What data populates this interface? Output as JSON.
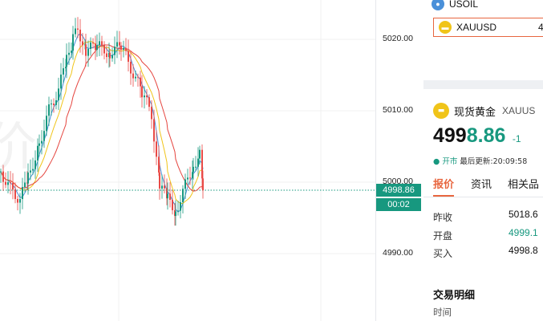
{
  "colors": {
    "accent": "#e8663f",
    "up": "#17987f",
    "down": "#e94a46",
    "ma_short": "#4a90d9",
    "ma_mid": "#f0c419",
    "ma_long": "#e5453f"
  },
  "chart": {
    "y_ticks": [
      "5020.00",
      "5010.00",
      "5000.00",
      "4990.00"
    ],
    "current_price": "4998.86",
    "countdown": "00:02"
  },
  "watchlist": {
    "items": [
      {
        "symbol": "USOIL",
        "icon": "oil-drop-icon"
      },
      {
        "symbol": "XAUUSD",
        "icon": "gold-bars-icon",
        "value": "4"
      }
    ]
  },
  "quote": {
    "icon": "gold-bars-icon",
    "name": "现货黄金",
    "symbol": "XAUUS",
    "price_main": "499",
    "price_tail": "8.86",
    "change": "-1",
    "status": "开市",
    "updated": "最后更新:20:09:58",
    "tabs": [
      "报价",
      "资讯",
      "相关品"
    ],
    "rows": [
      {
        "label": "昨收",
        "value": "5018.6"
      },
      {
        "label": "开盘",
        "value": "4999.1"
      },
      {
        "label": "买入",
        "value": "4998.8"
      }
    ]
  },
  "trades": {
    "title": "交易明细",
    "col_time": "时间"
  }
}
